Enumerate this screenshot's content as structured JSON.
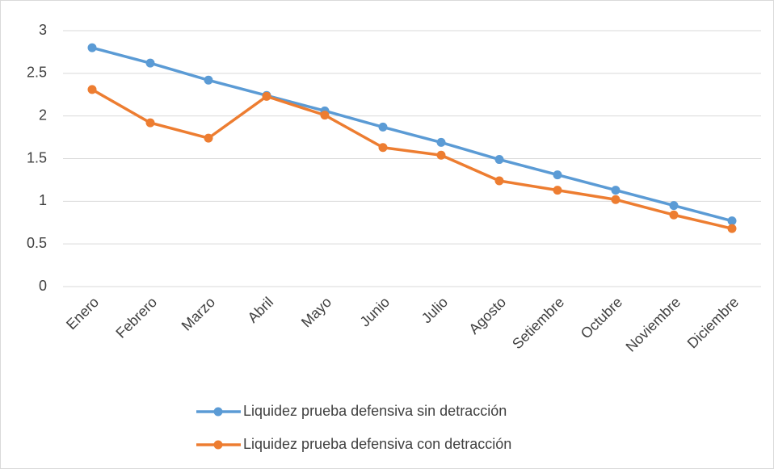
{
  "chart_data": {
    "type": "line",
    "categories": [
      "Enero",
      "Febrero",
      "Marzo",
      "Abril",
      "Mayo",
      "Junio",
      "Julio",
      "Agosto",
      "Setiembre",
      "Octubre",
      "Noviembre",
      "Diciembre"
    ],
    "series": [
      {
        "name": "Liquidez prueba defensiva sin detracción",
        "color": "#5b9bd5",
        "values": [
          2.8,
          2.62,
          2.42,
          2.24,
          2.06,
          1.87,
          1.69,
          1.49,
          1.31,
          1.13,
          0.95,
          0.77
        ]
      },
      {
        "name": "Liquidez prueba defensiva con detracción",
        "color": "#ed7d31",
        "values": [
          2.31,
          1.92,
          1.74,
          2.23,
          2.01,
          1.63,
          1.54,
          1.24,
          1.13,
          1.02,
          0.84,
          0.68
        ]
      }
    ],
    "ylim": [
      0,
      3
    ],
    "yticks": [
      0,
      0.5,
      1,
      1.5,
      2,
      2.5,
      3
    ],
    "grid": true,
    "legend": "bottom"
  }
}
